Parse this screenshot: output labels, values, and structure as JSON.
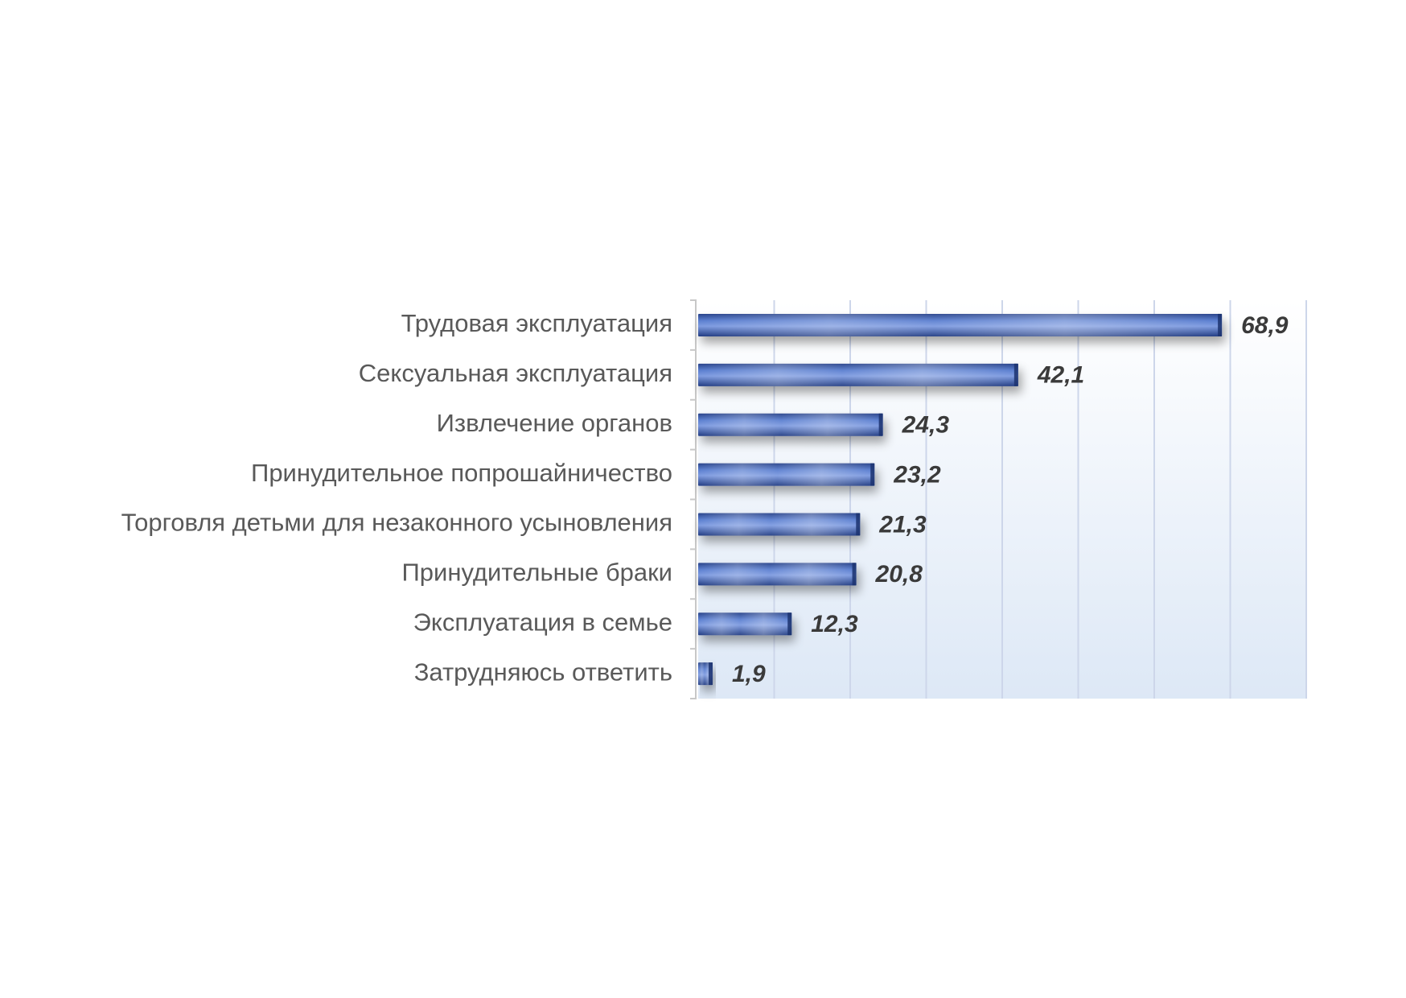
{
  "chart_data": {
    "type": "bar",
    "orientation": "horizontal",
    "categories": [
      "Трудовая эксплуатация",
      "Сексуальная эксплуатация",
      "Извлечение органов",
      "Принудительное попрошайничество",
      "Торговля  детьми для незаконного  усыновления",
      "Принудительные браки",
      "Эксплуатация в семье",
      "Затрудняюсь ответить"
    ],
    "values": [
      68.9,
      42.1,
      24.3,
      23.2,
      21.3,
      20.8,
      12.3,
      1.9
    ],
    "value_labels": [
      "68,9",
      "42,1",
      "24,3",
      "23,2",
      "21,3",
      "20,8",
      "12,3",
      "1,9"
    ],
    "xlim": [
      0,
      80
    ],
    "grid": true,
    "legend": "none",
    "title": "",
    "xlabel": "",
    "ylabel": ""
  },
  "colors": {
    "bar_dark": "#2f4f9a",
    "bar_light": "#6f8fd8",
    "bar_highlight": "#9fb6ea",
    "plot_bg_top": "#ffffff",
    "plot_bg_bottom": "#dde8f6",
    "gridline": "#cdd6ea",
    "axis": "#c8c8c8"
  }
}
